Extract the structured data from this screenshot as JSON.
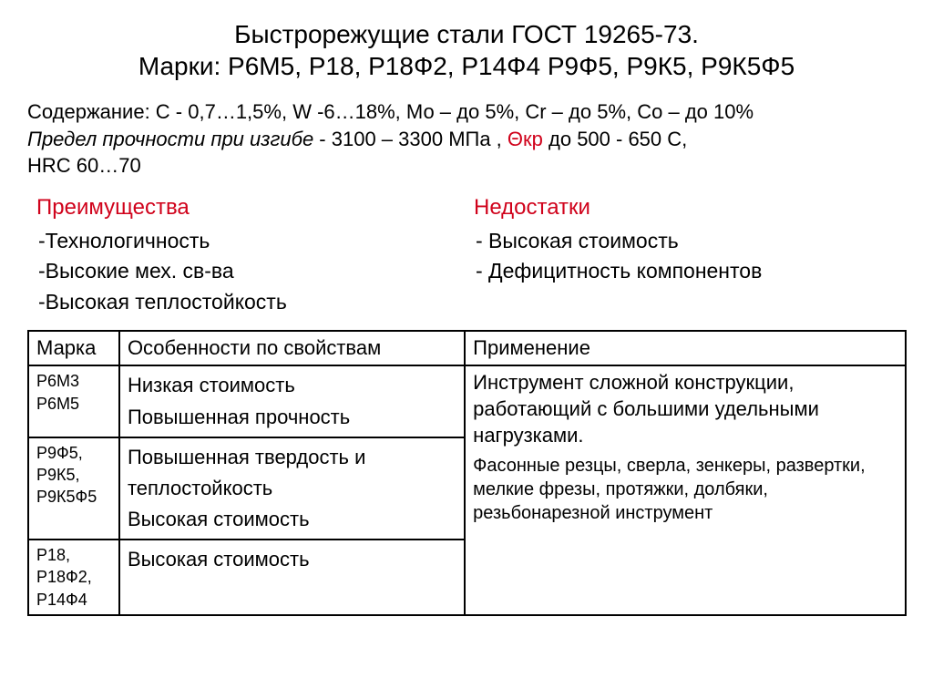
{
  "title_line1": "Быстрорежущие стали  ГОСТ 19265-73.",
  "title_line2": "Марки: Р6М5, Р18, Р18Ф2, Р14Ф4 Р9Ф5, Р9К5, Р9К5Ф5",
  "composition": {
    "line1": "Содержание: С - 0,7…1,5%, W -6…18%, Мо – до 5%, Cr – до 5%, Со – до 10%",
    "line2_italic": "Предел прочности при изгибе",
    "line2_rest": " - 3100 – 3300 МПа ,  ",
    "line2_red": "Θкр",
    "line2_after_red": " до 500 - 650 С,",
    "line3": "HRC 60…70"
  },
  "advantages": {
    "heading": "Преимущества",
    "items": [
      "-Технологичность",
      "-Высокие мех.  св-ва",
      "-Высокая теплостойкость"
    ]
  },
  "disadvantages": {
    "heading": "Недостатки",
    "items": [
      "- Высокая стоимость",
      "- Дефицитность компонентов"
    ]
  },
  "table": {
    "headers": {
      "col1": "Марка",
      "col2": "Особенности по свойствам",
      "col3": "Применение"
    },
    "rows": [
      {
        "mark_line1": "Р6М3",
        "mark_line2": "Р6М5",
        "feat_line1": "Низкая стоимость",
        "feat_line2": "Повышенная прочность"
      },
      {
        "mark_line1": "Р9Ф5,",
        "mark_line2": "Р9К5,",
        "mark_line3": "Р9К5Ф5",
        "feat_line1": "Повышенная твердость и теплостойкость",
        "feat_line2": "Высокая стоимость"
      },
      {
        "mark_line1": "Р18,",
        "mark_line2": "Р18Ф2,",
        "mark_line3": "Р14Ф4",
        "feat_line1": "Высокая стоимость"
      }
    ],
    "application": {
      "top": "Инструмент сложной конструкции, работающий с большими удельными нагрузками.",
      "bottom": "Фасонные резцы, сверла, зенкеры, развертки, мелкие фрезы, протяжки, долбяки, резьбонарезной инструмент"
    }
  },
  "colors": {
    "text": "#000000",
    "accent": "#d0021b",
    "background": "#ffffff",
    "border": "#000000"
  }
}
